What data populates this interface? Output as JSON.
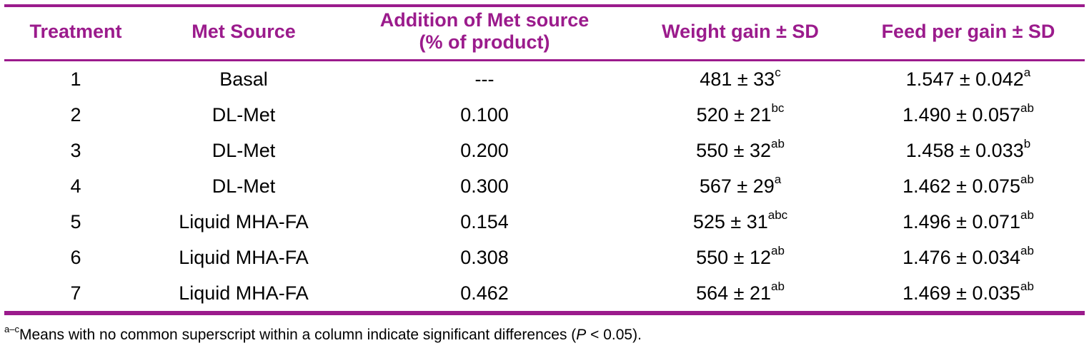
{
  "table": {
    "headers": [
      {
        "line1": "Treatment",
        "line2": ""
      },
      {
        "line1": "Met Source",
        "line2": ""
      },
      {
        "line1": "Addition of Met source",
        "line2": "(% of product)"
      },
      {
        "line1": "Weight gain ± SD",
        "line2": ""
      },
      {
        "line1": "Feed per gain ± SD",
        "line2": ""
      }
    ],
    "rows": [
      {
        "treatment": "1",
        "source": "Basal",
        "addition": "---",
        "wg": "481 ± 33",
        "wg_sup": "c",
        "fg": "1.547 ± 0.042",
        "fg_sup": "a"
      },
      {
        "treatment": "2",
        "source": "DL-Met",
        "addition": "0.100",
        "wg": "520 ± 21",
        "wg_sup": "bc",
        "fg": "1.490 ± 0.057",
        "fg_sup": "ab"
      },
      {
        "treatment": "3",
        "source": "DL-Met",
        "addition": "0.200",
        "wg": "550 ± 32",
        "wg_sup": "ab",
        "fg": "1.458 ± 0.033",
        "fg_sup": "b"
      },
      {
        "treatment": "4",
        "source": "DL-Met",
        "addition": "0.300",
        "wg": "567 ± 29",
        "wg_sup": "a",
        "fg": "1.462 ± 0.075",
        "fg_sup": "ab"
      },
      {
        "treatment": "5",
        "source": "Liquid MHA-FA",
        "addition": "0.154",
        "wg": "525 ± 31",
        "wg_sup": "abc",
        "fg": "1.496 ± 0.071",
        "fg_sup": "ab"
      },
      {
        "treatment": "6",
        "source": "Liquid MHA-FA",
        "addition": "0.308",
        "wg": "550 ± 12",
        "wg_sup": "ab",
        "fg": "1.476 ± 0.034",
        "fg_sup": "ab"
      },
      {
        "treatment": "7",
        "source": "Liquid MHA-FA",
        "addition": "0.462",
        "wg": "564 ± 21",
        "wg_sup": "ab",
        "fg": "1.469 ± 0.035",
        "fg_sup": "ab"
      }
    ]
  },
  "footnote": {
    "sup": "a–c",
    "text_before": "Means with no common superscript within a column indicate significant differences (",
    "p": "P",
    "text_after": " < 0.05)."
  },
  "colors": {
    "accent": "#9b1b8c",
    "text": "#000000"
  }
}
